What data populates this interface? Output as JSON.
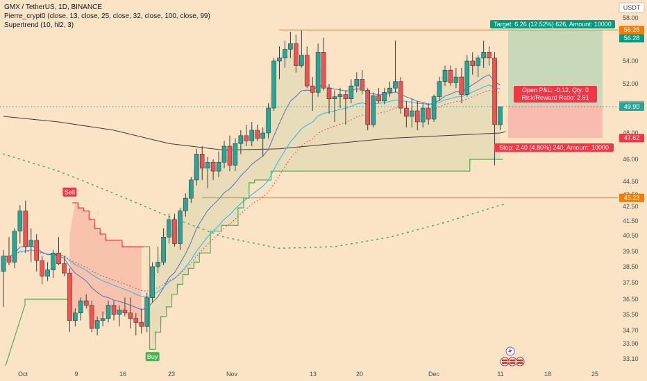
{
  "legend": {
    "title": "GMX / TetherUS, 1D, BINANCE",
    "ma_line": "Pierre_crypt0 (close, 13, close, 25, close, 32, close, 100, close, 99)",
    "st_line": "Supertrend (10, hl2, 3)"
  },
  "colors": {
    "background": "#fbe3c6",
    "up": "#26a69a",
    "down": "#ef5350",
    "supertrend_up": "#4caf50",
    "supertrend_down": "#f23645",
    "target": "#089981",
    "stop": "#f23645",
    "hline": "#f57c00",
    "close_line": "#26a69a"
  },
  "chart_data": {
    "type": "candlestick",
    "currency": "USDT",
    "ylim": [
      32.6,
      59.0
    ],
    "y_ticks": [
      "58.00",
      "56.00",
      "54.00",
      "52.00",
      "50.00",
      "48.00",
      "46.00",
      "44.50",
      "43.50",
      "42.50",
      "41.50",
      "40.50",
      "39.50",
      "38.50",
      "37.50",
      "36.50",
      "35.50",
      "34.70",
      "33.90",
      "33.10"
    ],
    "x_ticks": [
      "Oct",
      "9",
      "16",
      "23",
      "Nov",
      "13",
      "20",
      "Dec",
      "11",
      "18",
      "25"
    ],
    "ohlc": [
      [
        38.2,
        39.6,
        36.0,
        39.2
      ],
      [
        39.2,
        40.4,
        38.6,
        38.8
      ],
      [
        38.8,
        41.0,
        38.4,
        40.8
      ],
      [
        40.8,
        42.6,
        40.0,
        42.2
      ],
      [
        42.2,
        43.0,
        39.4,
        39.8
      ],
      [
        39.8,
        41.0,
        38.8,
        40.2
      ],
      [
        40.2,
        40.6,
        38.2,
        38.9
      ],
      [
        38.9,
        39.2,
        37.4,
        37.9
      ],
      [
        37.9,
        38.8,
        37.6,
        38.3
      ],
      [
        38.3,
        39.6,
        37.8,
        39.4
      ],
      [
        39.4,
        40.4,
        38.6,
        38.7
      ],
      [
        38.7,
        39.2,
        37.9,
        38.1
      ],
      [
        38.1,
        38.4,
        34.6,
        35.2
      ],
      [
        35.2,
        35.9,
        34.9,
        35.6
      ],
      [
        35.6,
        36.6,
        35.2,
        36.4
      ],
      [
        36.4,
        36.8,
        35.9,
        36.1
      ],
      [
        36.1,
        36.4,
        34.6,
        34.8
      ],
      [
        34.8,
        35.4,
        34.4,
        35.2
      ],
      [
        35.2,
        35.7,
        34.9,
        35.3
      ],
      [
        35.3,
        36.4,
        35.1,
        36.1
      ],
      [
        36.1,
        36.4,
        35.2,
        35.5
      ],
      [
        35.5,
        36.1,
        34.9,
        35.8
      ],
      [
        35.8,
        36.6,
        35.4,
        35.6
      ],
      [
        35.6,
        36.6,
        34.8,
        35.3
      ],
      [
        35.3,
        35.6,
        34.4,
        35.1
      ],
      [
        35.1,
        35.9,
        34.5,
        34.9
      ],
      [
        34.9,
        36.9,
        34.6,
        36.6
      ],
      [
        36.6,
        38.8,
        36.3,
        38.5
      ],
      [
        38.5,
        39.8,
        38.1,
        38.8
      ],
      [
        38.8,
        41.0,
        38.6,
        40.4
      ],
      [
        40.4,
        42.0,
        40.0,
        41.6
      ],
      [
        41.6,
        42.0,
        39.8,
        40.0
      ],
      [
        40.0,
        42.4,
        39.6,
        42.2
      ],
      [
        42.2,
        43.6,
        41.8,
        43.2
      ],
      [
        43.2,
        44.8,
        42.8,
        44.6
      ],
      [
        44.6,
        46.8,
        44.2,
        46.4
      ],
      [
        46.4,
        47.0,
        44.6,
        45.4
      ],
      [
        45.4,
        46.2,
        44.0,
        45.8
      ],
      [
        45.8,
        46.0,
        44.6,
        45.2
      ],
      [
        45.2,
        46.6,
        44.8,
        45.8
      ],
      [
        45.8,
        47.4,
        45.4,
        47.0
      ],
      [
        47.0,
        47.8,
        45.2,
        45.6
      ],
      [
        45.6,
        47.6,
        45.2,
        47.2
      ],
      [
        47.2,
        48.2,
        46.4,
        47.8
      ],
      [
        47.8,
        48.6,
        47.0,
        47.4
      ],
      [
        47.4,
        48.8,
        47.0,
        48.2
      ],
      [
        48.2,
        48.6,
        47.4,
        47.6
      ],
      [
        47.6,
        48.4,
        46.2,
        48.0
      ],
      [
        48.0,
        50.2,
        47.6,
        49.8
      ],
      [
        49.8,
        54.2,
        49.6,
        54.0
      ],
      [
        54.0,
        55.0,
        52.4,
        54.2
      ],
      [
        54.2,
        55.4,
        53.4,
        54.8
      ],
      [
        54.8,
        56.0,
        54.2,
        55.2
      ],
      [
        55.2,
        55.8,
        53.0,
        53.6
      ],
      [
        53.6,
        56.2,
        53.4,
        54.4
      ],
      [
        54.4,
        55.0,
        51.6,
        51.8
      ],
      [
        51.8,
        52.6,
        49.6,
        51.2
      ],
      [
        51.2,
        55.2,
        50.8,
        54.6
      ],
      [
        54.6,
        55.6,
        51.4,
        51.6
      ],
      [
        51.6,
        52.0,
        49.4,
        50.6
      ],
      [
        50.6,
        51.4,
        48.8,
        50.8
      ],
      [
        50.8,
        51.6,
        49.8,
        51.0
      ],
      [
        51.0,
        51.4,
        48.6,
        50.6
      ],
      [
        50.6,
        52.4,
        50.2,
        51.8
      ],
      [
        51.8,
        53.0,
        51.2,
        52.4
      ],
      [
        52.4,
        53.2,
        51.0,
        51.4
      ],
      [
        51.4,
        51.6,
        48.2,
        48.6
      ],
      [
        48.6,
        51.2,
        48.4,
        50.9
      ],
      [
        50.9,
        51.6,
        50.2,
        50.4
      ],
      [
        50.4,
        51.6,
        50.1,
        51.2
      ],
      [
        51.2,
        52.2,
        50.8,
        51.6
      ],
      [
        51.6,
        55.4,
        51.2,
        52.2
      ],
      [
        52.2,
        52.6,
        49.4,
        49.8
      ],
      [
        49.8,
        50.4,
        48.4,
        49.2
      ],
      [
        49.2,
        50.6,
        48.4,
        49.6
      ],
      [
        49.6,
        50.4,
        48.2,
        48.8
      ],
      [
        48.8,
        50.2,
        48.4,
        49.8
      ],
      [
        49.8,
        50.2,
        48.6,
        49.0
      ],
      [
        49.0,
        51.0,
        48.8,
        50.8
      ],
      [
        50.8,
        52.6,
        50.4,
        52.2
      ],
      [
        52.2,
        53.6,
        51.8,
        53.2
      ],
      [
        53.2,
        53.6,
        51.8,
        52.1
      ],
      [
        52.1,
        53.4,
        51.6,
        52.6
      ],
      [
        52.6,
        53.4,
        50.2,
        51.0
      ],
      [
        51.0,
        54.4,
        50.8,
        54.0
      ],
      [
        54.0,
        54.6,
        52.8,
        53.6
      ],
      [
        53.6,
        54.4,
        52.6,
        54.2
      ],
      [
        54.2,
        55.4,
        53.4,
        54.6
      ],
      [
        54.6,
        55.0,
        53.6,
        54.2
      ],
      [
        54.2,
        54.6,
        45.6,
        48.6
      ],
      [
        48.6,
        49.9,
        48.2,
        49.9
      ]
    ],
    "supertrend": [
      null,
      null,
      null,
      40.6,
      40.6,
      40.6,
      40.6,
      40.6,
      40.6,
      40.6,
      40.6,
      40.6,
      40.6,
      42.8,
      42.4,
      42.2,
      41.6,
      41.0,
      40.6,
      40.2,
      40.2,
      40.2,
      39.8,
      39.8,
      39.8,
      39.8,
      39.8,
      33.6,
      34.6,
      35.4,
      36.0,
      36.8,
      37.4,
      38.0,
      38.4,
      38.8,
      39.4,
      39.4,
      40.8,
      40.8,
      41.2,
      41.2,
      41.2,
      42.4,
      43.2,
      44.4,
      44.6,
      44.6,
      44.6,
      45.2,
      45.2,
      45.2,
      45.2,
      45.2,
      45.2,
      45.2,
      45.2,
      45.2,
      45.2,
      45.2,
      45.2,
      45.2,
      45.2,
      45.2,
      45.2,
      45.2,
      45.2,
      45.2,
      45.2,
      45.2,
      45.2,
      45.2,
      45.2,
      45.2,
      45.2,
      45.2,
      45.2,
      45.2,
      45.2,
      45.2,
      45.2,
      45.2,
      45.2,
      45.2,
      45.2,
      46.0,
      46.0,
      46.0,
      46.0,
      46.0,
      46.0,
      46.0
    ],
    "supertrend_flip_index": 26,
    "signals": [
      {
        "label": "Sell",
        "index": 12,
        "price": 43.1,
        "color": "#f23645"
      },
      {
        "label": "Buy",
        "index": 27,
        "price": 33.6,
        "color": "#4caf50"
      }
    ],
    "ma_long": [
      [
        0,
        49.2
      ],
      [
        10,
        48.8
      ],
      [
        20,
        48.2
      ],
      [
        30,
        47.2
      ],
      [
        40,
        46.7
      ],
      [
        50,
        46.8
      ],
      [
        60,
        47.2
      ],
      [
        70,
        47.6
      ],
      [
        80,
        47.8
      ],
      [
        90,
        48.0
      ],
      [
        91,
        48.1
      ]
    ],
    "dotted_ma": [
      [
        0,
        46.4
      ],
      [
        10,
        45.2
      ],
      [
        20,
        43.6
      ],
      [
        30,
        41.8
      ],
      [
        40,
        40.4
      ],
      [
        50,
        39.7
      ],
      [
        60,
        39.8
      ],
      [
        70,
        40.4
      ],
      [
        80,
        41.4
      ],
      [
        90,
        42.6
      ],
      [
        91,
        42.7
      ]
    ],
    "position": {
      "entry": 50.02,
      "target": 56.28,
      "stop": 47.62,
      "target_label": "Target: 6.26 (12.52%) 626, Amount: 10000",
      "stop_label": "Stop: 2.40 (4.80%) 240, Amount: 10000",
      "pnl_line1": "Open P&L: -0.12, Qty: 0",
      "pnl_line2": "Risk/Reward Ratio: 2.61"
    },
    "hlines": [
      {
        "price": 56.28,
        "label": "56.28",
        "from_index": 50
      },
      {
        "price": 43.23,
        "label": "43.23",
        "from_index": 36
      }
    ],
    "last_price": 49.9,
    "price_labels": [
      {
        "price": 56.28,
        "text": "56.28",
        "color": "#f57c00"
      },
      {
        "price": 56.28,
        "text": "56.28",
        "color": "#089981",
        "offset": 1
      },
      {
        "price": 50.02,
        "text": "50.02",
        "color": "#9e9e9e"
      },
      {
        "price": 49.9,
        "text": "49.90",
        "color": "#26a69a"
      },
      {
        "price": 47.62,
        "text": "47.62",
        "color": "#f23645"
      },
      {
        "price": 43.23,
        "text": "43.23",
        "color": "#f57c00"
      }
    ]
  }
}
